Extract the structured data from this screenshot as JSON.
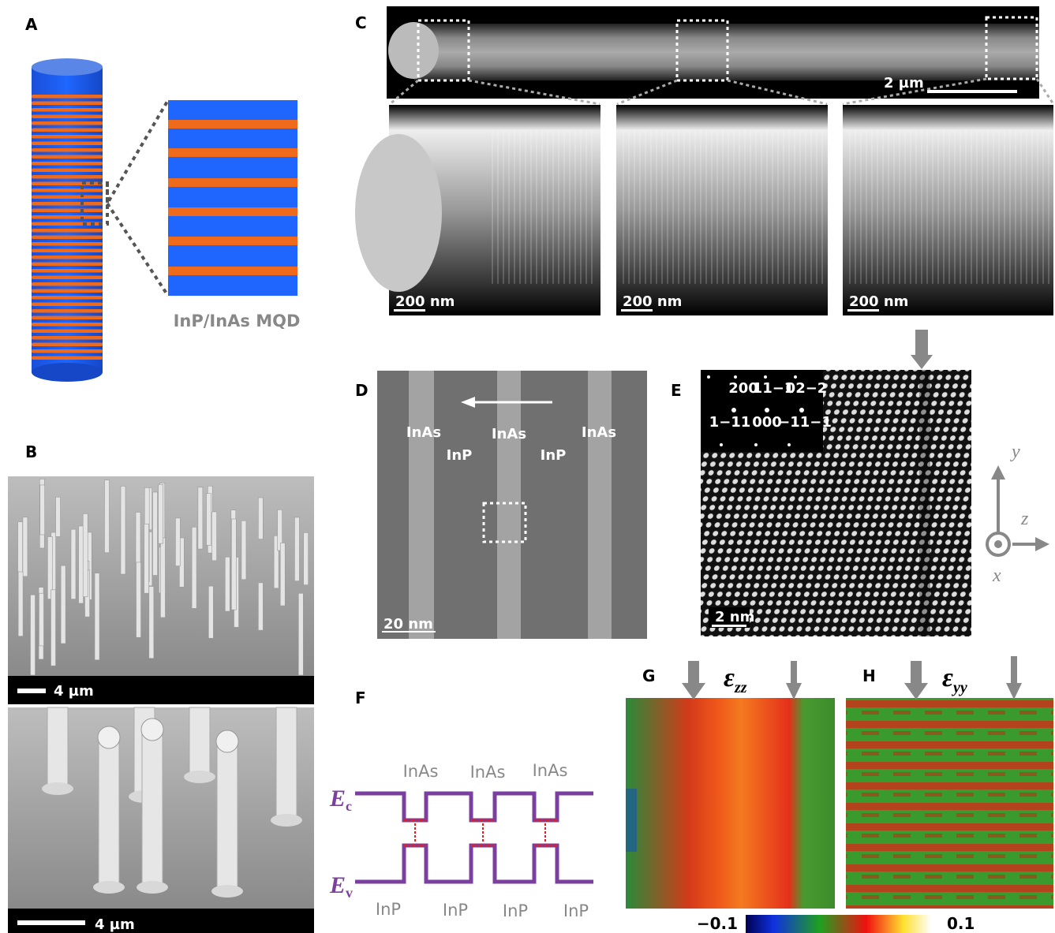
{
  "panels": {
    "A": "A",
    "B": "B",
    "C": "C",
    "D": "D",
    "E": "E",
    "F": "F",
    "G": "G",
    "H": "H"
  },
  "a": {
    "caption": "InP/InAs MQD"
  },
  "b": {
    "scale_top": "4 µm",
    "scale_bottom": "4 µm"
  },
  "c": {
    "scale_overview": "2 µm",
    "scale_zoom": [
      "200 nm",
      "200 nm",
      "200 nm"
    ]
  },
  "d": {
    "labels": [
      "InAs",
      "InP",
      "InAs",
      "InP",
      "InAs"
    ],
    "scale": "20 nm"
  },
  "e": {
    "fft": [
      "200",
      "11−1",
      "02−2",
      "1−11",
      "000",
      "−11−1"
    ],
    "scale": "2 nm",
    "axes": {
      "y": "y",
      "z": "z",
      "x": "x"
    }
  },
  "f": {
    "top": [
      "InAs",
      "InAs",
      "InAs"
    ],
    "bottom": [
      "InP",
      "InP",
      "InP",
      "InP"
    ],
    "ec": {
      "symbol": "E",
      "subscript": "c"
    },
    "ev": {
      "symbol": "E",
      "subscript": "v"
    }
  },
  "g": {
    "symbol": "ε",
    "subscript": "zz"
  },
  "h": {
    "symbol": "ε",
    "subscript": "yy"
  },
  "colorbar": {
    "min": "−0.1",
    "max": "0.1"
  }
}
